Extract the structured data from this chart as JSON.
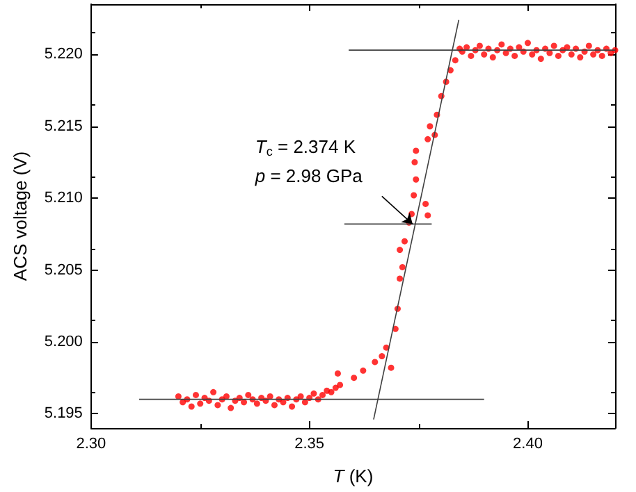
{
  "chart_data": {
    "type": "scatter",
    "xlabel": "T (K)",
    "ylabel": "ACS voltage (V)",
    "xlim": [
      2.3,
      2.42
    ],
    "xticks": [
      {
        "value": 2.3,
        "label": "2.30"
      },
      {
        "value": 2.35,
        "label": "2.35"
      },
      {
        "value": 2.4,
        "label": "2.40"
      }
    ],
    "ylim": [
      5.194,
      5.2235
    ],
    "yticks": [
      {
        "value": 5.195,
        "label": "5.195"
      },
      {
        "value": 5.2,
        "label": "5.200"
      },
      {
        "value": 5.205,
        "label": "5.205"
      },
      {
        "value": 5.21,
        "label": "5.210"
      },
      {
        "value": 5.215,
        "label": "5.215"
      },
      {
        "value": 5.22,
        "label": "5.220"
      }
    ],
    "grid": false,
    "annotations": [
      "T$_{c}$ = 2.374 K",
      {
        "text": "p = 2.98 GPa",
        "x": 2.3736,
        "y": 5.2082
      }
    ],
    "series": [
      {
        "marker": "circle",
        "color": "#ff0000",
        "x": [
          2.32,
          2.321,
          2.322,
          2.323,
          2.324,
          2.325,
          2.326,
          2.327,
          2.328,
          2.329,
          2.33,
          2.331,
          2.332,
          2.333,
          2.334,
          2.335,
          2.336,
          2.337,
          2.338,
          2.339,
          2.34,
          2.341,
          2.342,
          2.343,
          2.344,
          2.345,
          2.346,
          2.347,
          2.348,
          2.349,
          2.35,
          2.351,
          2.352,
          2.353,
          2.354,
          2.355,
          2.356,
          2.357,
          2.3565,
          2.3602,
          2.3623,
          2.365,
          2.3666,
          2.3676,
          2.3687,
          2.3697,
          2.3702,
          2.3707,
          2.3713,
          2.3707,
          2.3718,
          2.3728,
          2.3734,
          2.3739,
          2.3744,
          2.3741,
          2.3744,
          2.3766,
          2.3771,
          2.3771,
          2.3787,
          2.3776,
          2.3792,
          2.3802,
          2.3813,
          2.3823,
          2.3834,
          2.3844,
          2.385,
          2.386,
          2.387,
          2.388,
          2.389,
          2.39,
          2.391,
          2.392,
          2.393,
          2.394,
          2.395,
          2.396,
          2.397,
          2.398,
          2.399,
          2.4,
          2.401,
          2.402,
          2.403,
          2.404,
          2.405,
          2.406,
          2.407,
          2.408,
          2.409,
          2.41,
          2.411,
          2.412,
          2.413,
          2.414,
          2.415,
          2.416,
          2.417,
          2.418,
          2.419,
          2.42
        ],
        "values": [
          5.1962,
          5.1958,
          5.196,
          5.1955,
          5.1963,
          5.1957,
          5.1961,
          5.1959,
          5.1965,
          5.1956,
          5.196,
          5.1962,
          5.1954,
          5.1959,
          5.1961,
          5.1958,
          5.1963,
          5.196,
          5.1957,
          5.1961,
          5.1959,
          5.1962,
          5.1956,
          5.196,
          5.1958,
          5.1961,
          5.1955,
          5.196,
          5.1962,
          5.1958,
          5.1961,
          5.1964,
          5.196,
          5.1963,
          5.1966,
          5.1965,
          5.1968,
          5.197,
          5.1978,
          5.1975,
          5.198,
          5.1986,
          5.199,
          5.1996,
          5.1982,
          5.2009,
          5.2023,
          5.2044,
          5.2052,
          5.2064,
          5.207,
          5.2083,
          5.2089,
          5.2102,
          5.2113,
          5.2125,
          5.2133,
          5.2096,
          5.2088,
          5.2141,
          5.2144,
          5.215,
          5.2158,
          5.2171,
          5.2181,
          5.2189,
          5.2196,
          5.2204,
          5.2202,
          5.2205,
          5.2199,
          5.2203,
          5.2206,
          5.22,
          5.2204,
          5.2198,
          5.2203,
          5.2207,
          5.2201,
          5.2204,
          5.2199,
          5.2205,
          5.2202,
          5.2208,
          5.22,
          5.2203,
          5.2197,
          5.2204,
          5.2201,
          5.2206,
          5.2199,
          5.2203,
          5.2205,
          5.22,
          5.2204,
          5.2198,
          5.2202,
          5.2206,
          5.22,
          5.2203,
          5.2199,
          5.2204,
          5.2201,
          5.2203
        ]
      },
      {
        "type": "line",
        "color": "#404040",
        "x": [
          2.311,
          2.39
        ],
        "values": [
          5.196,
          5.196
        ]
      },
      {
        "type": "line",
        "color": "#404040",
        "x": [
          2.359,
          2.42
        ],
        "values": [
          5.2203,
          5.2203
        ]
      },
      {
        "type": "line",
        "color": "#404040",
        "x": [
          2.358,
          2.378
        ],
        "values": [
          5.2082,
          5.2082
        ]
      },
      {
        "type": "line",
        "color": "#404040",
        "x": [
          2.3647,
          2.3842
        ],
        "values": [
          5.1946,
          5.2224
        ]
      }
    ]
  }
}
